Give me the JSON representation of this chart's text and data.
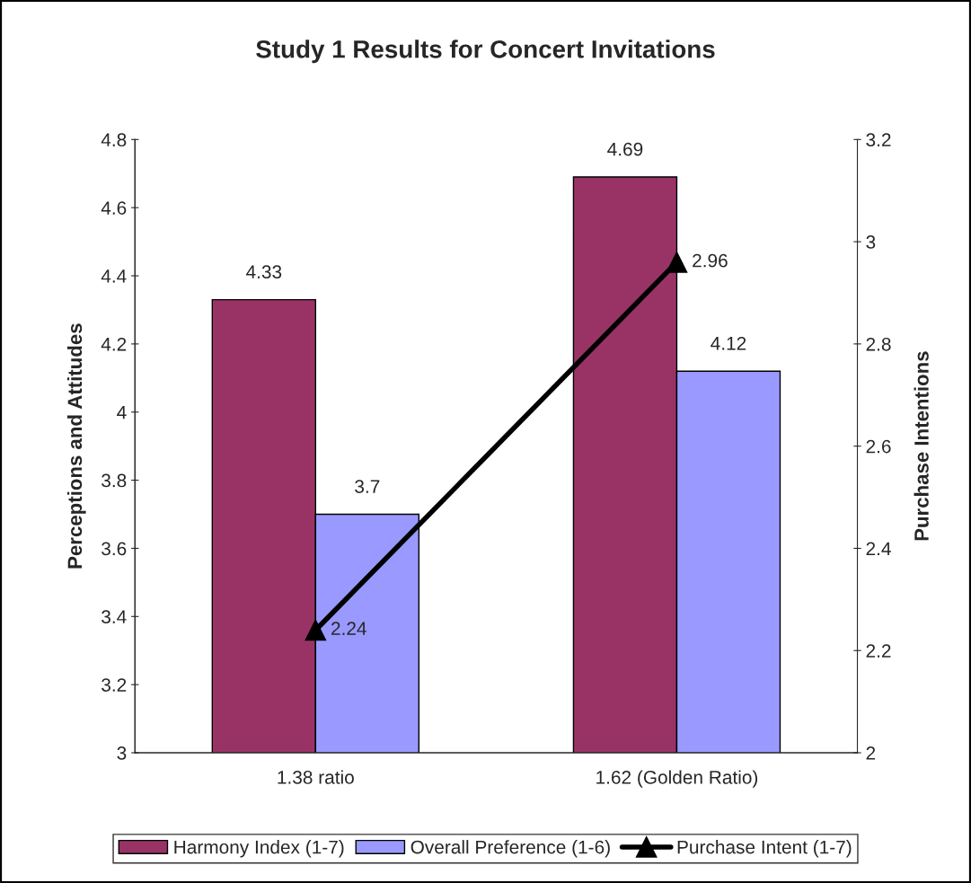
{
  "chart_data": {
    "type": "bar",
    "title": "Study 1 Results for Concert Invitations",
    "categories": [
      "1.38 ratio",
      "1.62 (Golden Ratio)"
    ],
    "ylabel": "Perceptions and Attitudes",
    "y2label": "Purchase Intentions",
    "series": [
      {
        "name": "Harmony Index (1-7)",
        "color": "#993366",
        "values": [
          4.33,
          4.69
        ]
      },
      {
        "name": "Overall Preference (1-6)",
        "color": "#9999ff",
        "values": [
          3.7,
          4.12
        ]
      },
      {
        "name": "Purchase Intent (1-7)",
        "type": "line",
        "axis": "y2",
        "color": "#000000",
        "marker": "triangle",
        "line_style": "solid",
        "values": [
          2.24,
          2.96
        ]
      }
    ],
    "ylim": [
      3,
      4.8
    ],
    "yticks": [
      3,
      3.2,
      3.4,
      3.6,
      3.8,
      4,
      4.2,
      4.4,
      4.6,
      4.8
    ],
    "y2lim": [
      2,
      3.2
    ],
    "y2ticks": [
      2,
      2.2,
      2.4,
      2.6,
      2.8,
      3,
      3.2
    ],
    "data_labels": true,
    "grid": false,
    "legend": "bottom"
  }
}
